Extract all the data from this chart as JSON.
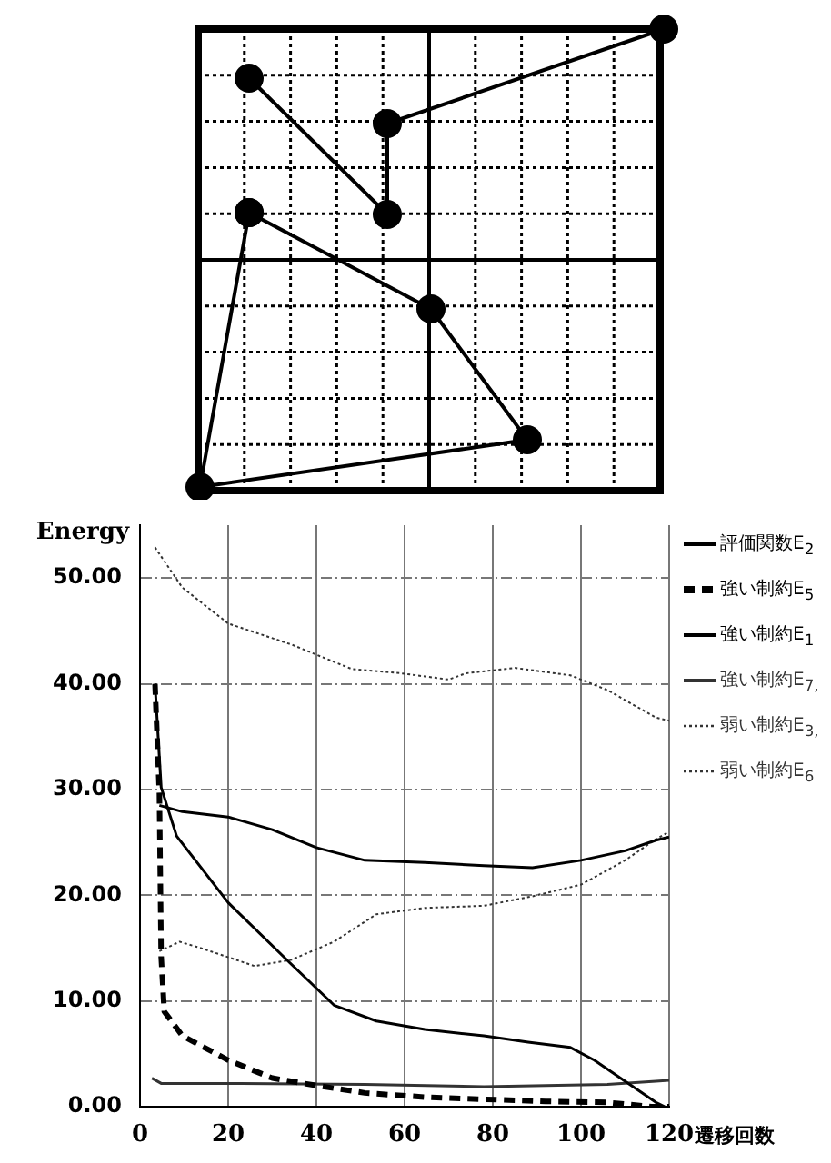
{
  "chart_data": {
    "type": "line",
    "xlabel": "遷移回数",
    "ylabel": "Energy",
    "xlim": [
      0,
      120
    ],
    "xticks": [
      0,
      20,
      40,
      60,
      80,
      100,
      120
    ],
    "ylim": [
      0,
      55
    ],
    "yticks": [
      {
        "value": 0,
        "label": "0.00"
      },
      {
        "value": 10,
        "label": "10.00"
      },
      {
        "value": 20,
        "label": "20.00"
      },
      {
        "value": 30,
        "label": "30.00"
      },
      {
        "value": 40,
        "label": "40.00"
      },
      {
        "value": 50,
        "label": "50.00"
      }
    ],
    "grid": true,
    "legend": "right",
    "marker": "none",
    "series": [
      {
        "name": "評価関数E$_{2}$",
        "color": "#000000",
        "line_style": "solid",
        "x": [
          4.4,
          9.6,
          20,
          30,
          40,
          51,
          64.6,
          78,
          89,
          100,
          110,
          117,
          120
        ],
        "values": [
          28.5,
          27.9,
          27.4,
          26.2,
          24.5,
          23.3,
          23.1,
          22.8,
          22.6,
          23.3,
          24.2,
          25.2,
          25.5
        ]
      },
      {
        "name": "強い制約E$_{5}$",
        "color": "#000000",
        "line_style": "dashed",
        "x": [
          3.4,
          4.4,
          4.8,
          5.5,
          9.6,
          20,
          30,
          40,
          51,
          64.6,
          78,
          92,
          106,
          116,
          120
        ],
        "values": [
          40,
          29.6,
          14.2,
          9,
          6.7,
          4.4,
          2.7,
          2,
          1.3,
          0.9,
          0.7,
          0.5,
          0.4,
          0,
          0
        ]
      },
      {
        "name": "強い制約E$_{1}$",
        "color": "#000000",
        "line_style": "solid",
        "x": [
          3.4,
          4.8,
          8.3,
          20,
          34,
          44,
          53.6,
          64.6,
          78,
          88,
          97.6,
          103,
          110,
          117,
          119
        ],
        "values": [
          40,
          30.2,
          25.6,
          19.3,
          13.6,
          9.6,
          8.1,
          7.3,
          6.7,
          6.1,
          5.6,
          4.4,
          2.4,
          0.4,
          0
        ]
      },
      {
        "name": "強い制約E$_{7,}$",
        "color": "#333333",
        "line_style": "solid",
        "x": [
          2.7,
          4.8,
          23,
          51,
          78,
          106,
          117,
          120
        ],
        "values": [
          2.7,
          2.2,
          2.2,
          2.1,
          1.9,
          2.1,
          2.4,
          2.5
        ]
      },
      {
        "name": "弱い制約E$_{3,}$",
        "color": "#333333",
        "line_style": "dotted",
        "x": [
          3.4,
          9.6,
          20,
          34.4,
          48,
          59,
          70,
          74,
          85,
          97.6,
          106,
          117,
          120
        ],
        "values": [
          52.9,
          49.1,
          45.7,
          43.7,
          41.4,
          41,
          40.4,
          41,
          41.5,
          40.8,
          39.4,
          36.8,
          36.5
        ]
      },
      {
        "name": "弱い制約E$_{6}$",
        "color": "#333333",
        "line_style": "dotted",
        "x": [
          4.4,
          9,
          13.8,
          26,
          34.4,
          44,
          53.6,
          64.6,
          78,
          89,
          100,
          110,
          117,
          120
        ],
        "values": [
          14.7,
          15.6,
          15,
          13.3,
          13.9,
          15.6,
          18.2,
          18.8,
          19,
          19.9,
          21,
          23.3,
          25.3,
          26
        ]
      }
    ]
  }
}
